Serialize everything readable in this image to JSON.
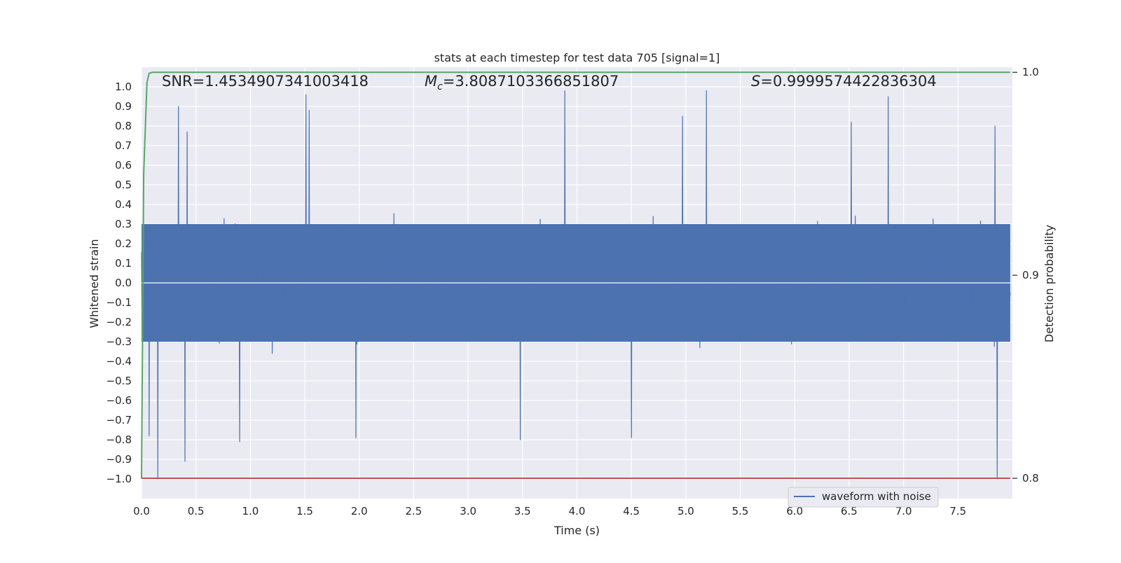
{
  "chart_data": {
    "type": "line",
    "title": "stats at each timestep for test data 705 [signal=1]",
    "xlabel": "Time (s)",
    "ylabel": "Whitened strain",
    "y2label": "Detection probability",
    "xlim": [
      0.0,
      8.0
    ],
    "ylim": [
      -1.1,
      1.1
    ],
    "y2lim": [
      0.79,
      1.0025
    ],
    "x_ticks": [
      "0.0",
      "0.5",
      "1.0",
      "1.5",
      "2.0",
      "2.5",
      "3.0",
      "3.5",
      "4.0",
      "4.5",
      "5.0",
      "5.5",
      "6.0",
      "6.5",
      "7.0",
      "7.5"
    ],
    "y_ticks": [
      "1.0",
      "0.9",
      "0.8",
      "0.7",
      "0.6",
      "0.5",
      "0.4",
      "0.3",
      "0.2",
      "0.1",
      "0.0",
      "−0.1",
      "−0.2",
      "−0.3",
      "−0.4",
      "−0.5",
      "−0.6",
      "−0.7",
      "−0.8",
      "−0.9",
      "−1.0"
    ],
    "y2_ticks": [
      "1.0",
      "0.9",
      "0.8"
    ],
    "annotations": {
      "snr": "SNR=1.4534907341003418",
      "mc": "=3.8087103366851807",
      "mc_symbol": "M",
      "mc_subscript": "c",
      "s": "=0.9999574422836304",
      "s_symbol": "S"
    },
    "legend": {
      "label": "waveform with noise",
      "position": "lower-right"
    },
    "grid": true,
    "series": [
      {
        "name": "waveform with noise",
        "color": "#4c72b0",
        "axis": "left",
        "duration_s": 8.0,
        "envelope_typical": [
          -0.45,
          0.45
        ],
        "peaks": [
          {
            "x": 0.34,
            "y": 0.9
          },
          {
            "x": 0.42,
            "y": 0.77
          },
          {
            "x": 1.51,
            "y": 0.96
          },
          {
            "x": 1.54,
            "y": 0.88
          },
          {
            "x": 3.89,
            "y": 0.98
          },
          {
            "x": 5.19,
            "y": 0.98
          },
          {
            "x": 6.86,
            "y": 0.95
          },
          {
            "x": 7.84,
            "y": 0.8
          },
          {
            "x": 4.97,
            "y": 0.85
          },
          {
            "x": 6.52,
            "y": 0.82
          }
        ],
        "troughs": [
          {
            "x": 0.15,
            "y": -1.0
          },
          {
            "x": 0.4,
            "y": -0.91
          },
          {
            "x": 0.9,
            "y": -0.81
          },
          {
            "x": 1.97,
            "y": -0.79
          },
          {
            "x": 3.48,
            "y": -0.8
          },
          {
            "x": 4.5,
            "y": -0.79
          },
          {
            "x": 7.86,
            "y": -1.0
          },
          {
            "x": 0.07,
            "y": -0.78
          }
        ]
      },
      {
        "name": "detection probability",
        "color": "#55a868",
        "axis": "right",
        "x": [
          0.0,
          0.02,
          0.05,
          0.07,
          0.1,
          0.2,
          1.0,
          2.0,
          3.0,
          4.0,
          5.0,
          6.0,
          7.0,
          7.98
        ],
        "y": [
          0.8,
          0.95,
          0.995,
          0.9995,
          1.0,
          1.0,
          1.0,
          1.0,
          1.0,
          1.0,
          1.0,
          1.0,
          1.0,
          1.0
        ]
      },
      {
        "name": "threshold",
        "color": "#c44e52",
        "axis": "right",
        "x": [
          0.0,
          7.98
        ],
        "y": [
          0.8,
          0.8
        ]
      }
    ]
  }
}
